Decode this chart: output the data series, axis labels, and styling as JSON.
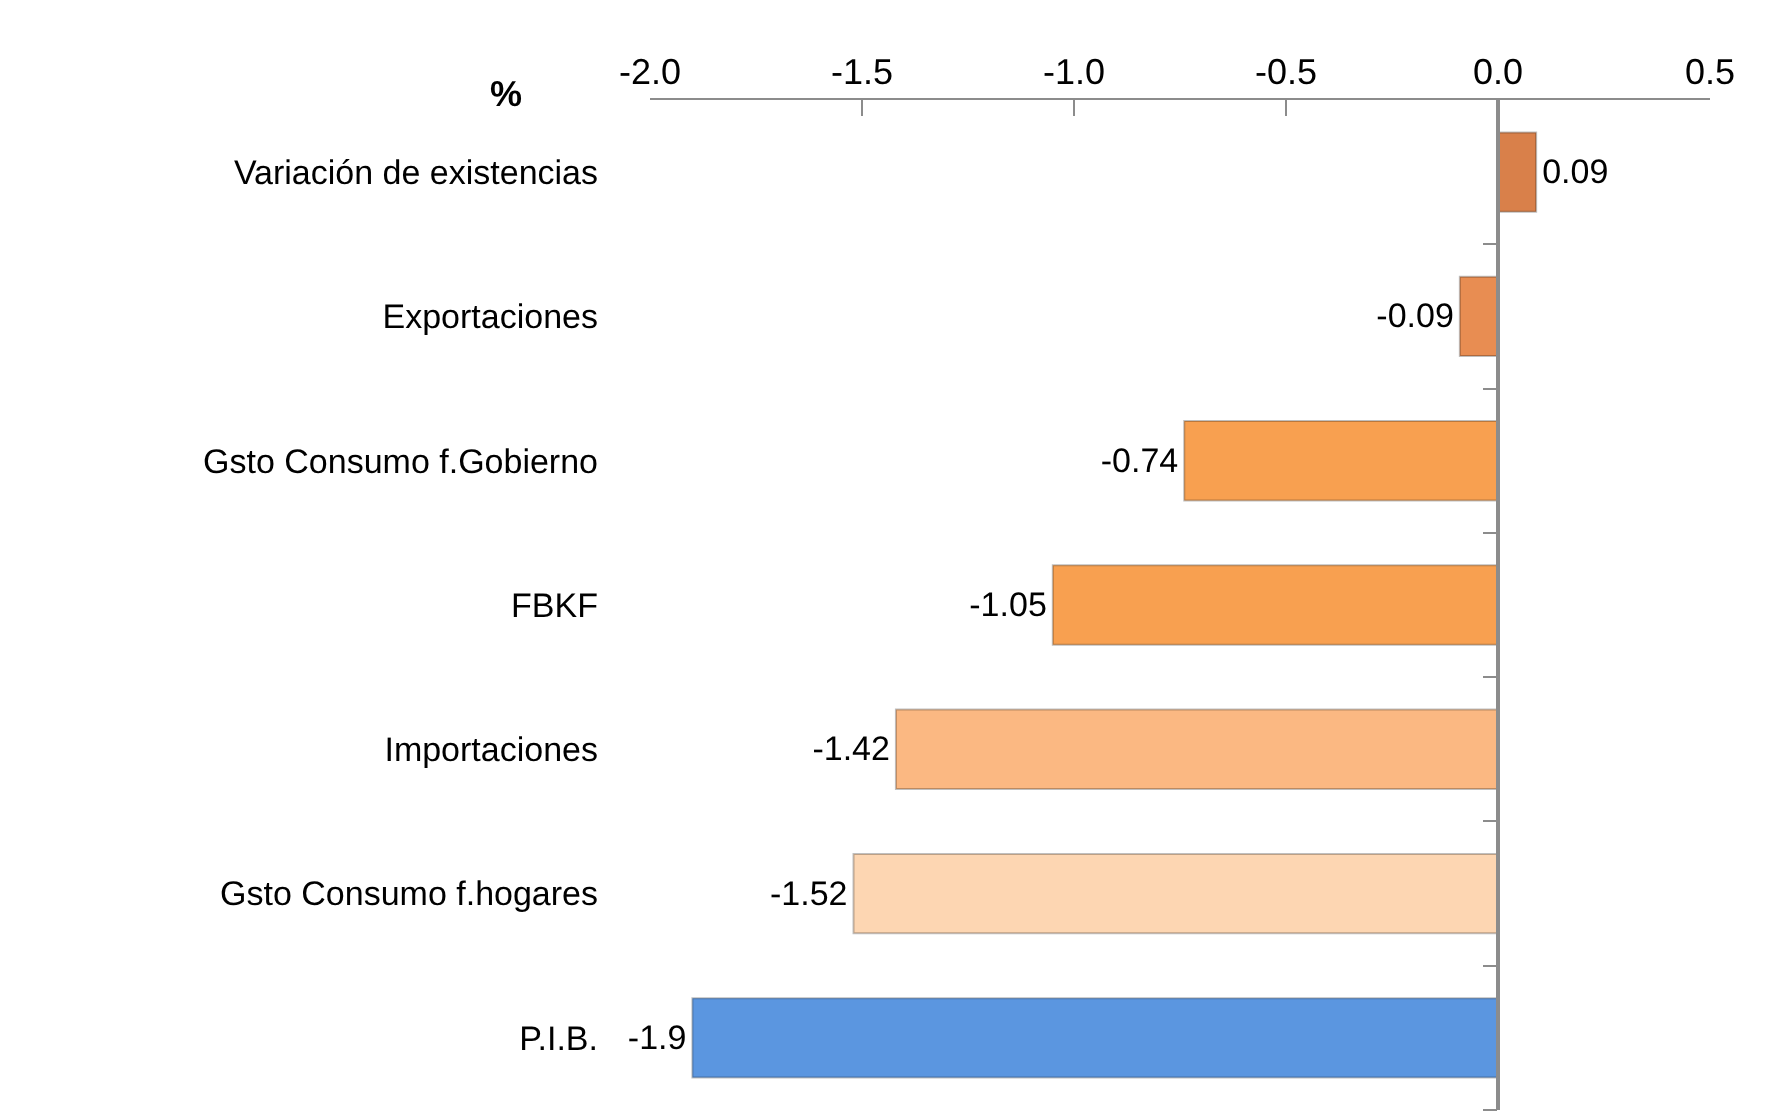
{
  "chart_data": {
    "type": "bar",
    "orientation": "horizontal",
    "ylabel": "%",
    "categories": [
      "Variación de existencias",
      "Exportaciones",
      "Gsto Consumo f.Gobierno",
      "FBKF",
      "Importaciones",
      "Gsto Consumo f.hogares",
      "P.I.B."
    ],
    "values": [
      0.09,
      -0.09,
      -0.74,
      -1.05,
      -1.42,
      -1.52,
      -1.9
    ],
    "colors": [
      "#d9804a",
      "#e88d52",
      "#f8a050",
      "#f8a050",
      "#fbb882",
      "#fdd6b2",
      "#5b96e0"
    ],
    "xlim": [
      -2.0,
      0.5
    ],
    "xticks": [
      {
        "value": -2,
        "label": "-2.0"
      },
      -1.5,
      {
        "value": -1,
        "label": "-1.0"
      },
      -0.5,
      {
        "value": 0,
        "label": "0.0"
      },
      0.5
    ],
    "data_labels": true
  }
}
